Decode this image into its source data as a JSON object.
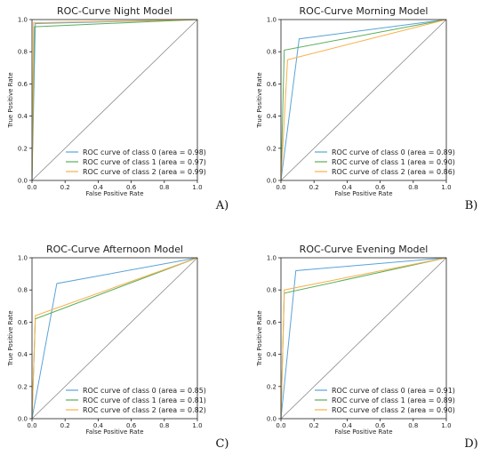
{
  "chart_data": [
    {
      "type": "line",
      "title": "ROC-Curve Night Model",
      "xlabel": "False Positive Rate",
      "ylabel": "True Positive Rate",
      "xlim": [
        0.0,
        1.0
      ],
      "ylim": [
        0.0,
        1.0
      ],
      "xticks": [
        "0.0",
        "0.2",
        "0.4",
        "0.6",
        "0.8",
        "1.0"
      ],
      "yticks": [
        "0.0",
        "0.2",
        "0.4",
        "0.6",
        "0.8",
        "1.0"
      ],
      "legend_position": "lower-right",
      "panel_letter": "A)",
      "series": [
        {
          "name": "ROC curve of class 0 (area = 0.98)",
          "color": "#5aa3d8",
          "x": [
            0,
            0.02,
            1
          ],
          "y": [
            0,
            0.975,
            1
          ]
        },
        {
          "name": "ROC curve of class 1 (area = 0.97)",
          "color": "#5cae5c",
          "x": [
            0,
            0.015,
            1
          ],
          "y": [
            0,
            0.955,
            1
          ]
        },
        {
          "name": "ROC curve of class 2 (area = 0.99)",
          "color": "#f7b04a",
          "x": [
            0,
            0.01,
            1
          ],
          "y": [
            0,
            0.98,
            1
          ]
        }
      ]
    },
    {
      "type": "line",
      "title": "ROC-Curve Morning Model",
      "xlabel": "False Positive Rate",
      "ylabel": "True Positive Rate",
      "xlim": [
        0.0,
        1.0
      ],
      "ylim": [
        0.0,
        1.0
      ],
      "xticks": [
        "0.0",
        "0.2",
        "0.4",
        "0.6",
        "0.8",
        "1.0"
      ],
      "yticks": [
        "0.0",
        "0.2",
        "0.4",
        "0.6",
        "0.8",
        "1.0"
      ],
      "legend_position": "lower-right",
      "panel_letter": "B)",
      "series": [
        {
          "name": "ROC curve of class 0 (area = 0.89)",
          "color": "#5aa3d8",
          "x": [
            0,
            0.11,
            1
          ],
          "y": [
            0,
            0.88,
            1
          ]
        },
        {
          "name": "ROC curve of class 1 (area = 0.90)",
          "color": "#5cae5c",
          "x": [
            0,
            0.02,
            1
          ],
          "y": [
            0,
            0.81,
            1
          ]
        },
        {
          "name": "ROC curve of class 2 (area = 0.86)",
          "color": "#f7b04a",
          "x": [
            0,
            0.04,
            1
          ],
          "y": [
            0,
            0.75,
            1
          ]
        }
      ]
    },
    {
      "type": "line",
      "title": "ROC-Curve Afternoon Model",
      "xlabel": "False Positive Rate",
      "ylabel": "True Positive Rate",
      "xlim": [
        0.0,
        1.0
      ],
      "ylim": [
        0.0,
        1.0
      ],
      "xticks": [
        "0.0",
        "0.2",
        "0.4",
        "0.6",
        "0.8",
        "1.0"
      ],
      "yticks": [
        "0.0",
        "0.2",
        "0.4",
        "0.6",
        "0.8",
        "1.0"
      ],
      "legend_position": "lower-right",
      "panel_letter": "C)",
      "series": [
        {
          "name": "ROC curve of class 0 (area = 0.85)",
          "color": "#5aa3d8",
          "x": [
            0,
            0.15,
            1
          ],
          "y": [
            0,
            0.84,
            1
          ]
        },
        {
          "name": "ROC curve of class 1 (area = 0.81)",
          "color": "#5cae5c",
          "x": [
            0,
            0.02,
            1
          ],
          "y": [
            0,
            0.62,
            1
          ]
        },
        {
          "name": "ROC curve of class 2 (area = 0.82)",
          "color": "#f7b04a",
          "x": [
            0,
            0.02,
            1
          ],
          "y": [
            0,
            0.64,
            1
          ]
        }
      ]
    },
    {
      "type": "line",
      "title": "ROC-Curve Evening Model",
      "xlabel": "False Positive Rate",
      "ylabel": "True Positive Rate",
      "xlim": [
        0.0,
        1.0
      ],
      "ylim": [
        0.0,
        1.0
      ],
      "xticks": [
        "0.0",
        "0.2",
        "0.4",
        "0.6",
        "0.8",
        "1.0"
      ],
      "yticks": [
        "0.0",
        "0.2",
        "0.4",
        "0.6",
        "0.8",
        "1.0"
      ],
      "legend_position": "lower-right",
      "panel_letter": "D)",
      "series": [
        {
          "name": "ROC curve of class 0 (area = 0.91)",
          "color": "#5aa3d8",
          "x": [
            0,
            0.09,
            1
          ],
          "y": [
            0,
            0.92,
            1
          ]
        },
        {
          "name": "ROC curve of class 1 (area = 0.89)",
          "color": "#5cae5c",
          "x": [
            0,
            0.02,
            1
          ],
          "y": [
            0,
            0.78,
            1
          ]
        },
        {
          "name": "ROC curve of class 2 (area = 0.90)",
          "color": "#f7b04a",
          "x": [
            0,
            0.02,
            1
          ],
          "y": [
            0,
            0.8,
            1
          ]
        }
      ]
    }
  ],
  "diagonal_color": "#888888"
}
